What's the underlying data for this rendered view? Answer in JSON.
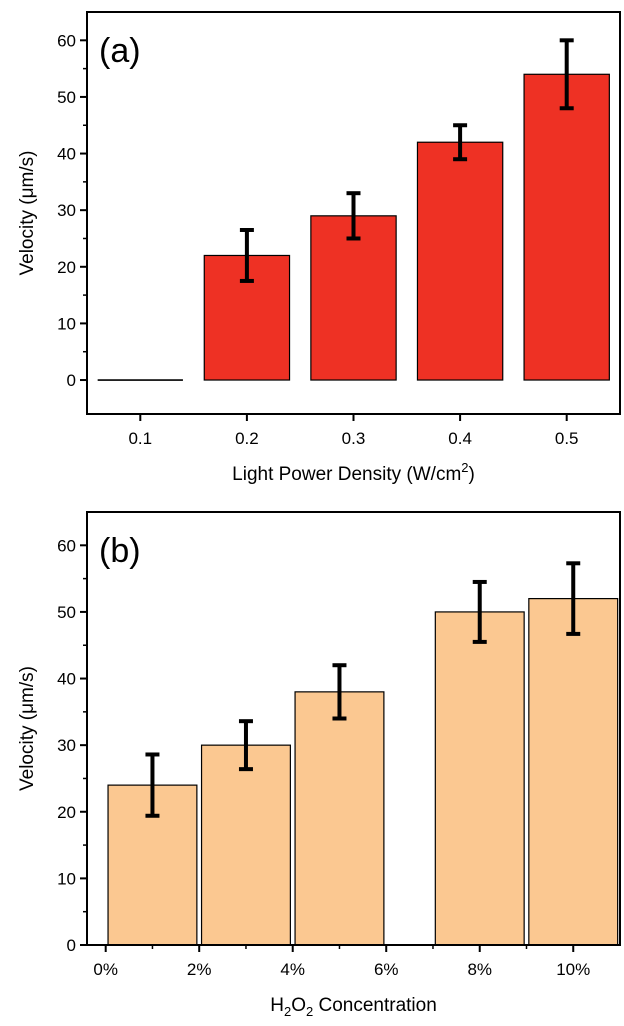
{
  "chart_data": [
    {
      "type": "bar",
      "panel_label": "(a)",
      "xlabel": "Light Power Density (W/cm",
      "xlabel_sup": "2",
      "xlabel_end": ")",
      "ylabel": "Velocity (μm/s)",
      "categories": [
        "0.1",
        "0.2",
        "0.3",
        "0.4",
        "0.5"
      ],
      "values": [
        0,
        22,
        29,
        42,
        54
      ],
      "errors": [
        0,
        4.5,
        4,
        3,
        6
      ],
      "ylim": [
        -6,
        65
      ],
      "yticks": [
        0,
        10,
        20,
        30,
        40,
        50,
        60
      ],
      "bar_color": "#ee3124",
      "error_bar_color": "#000000",
      "grid": false
    },
    {
      "type": "bar",
      "panel_label": "(b)",
      "xlabel_pre": "H",
      "xlabel_sub1": "2",
      "xlabel_mid": "O",
      "xlabel_sub2": "2",
      "xlabel_post": " Concentration",
      "ylabel": "Velocity (μm/s)",
      "x_tick_labels": [
        "0%",
        "2%",
        "4%",
        "6%",
        "8%",
        "10%"
      ],
      "x_tick_values": [
        0,
        2,
        4,
        6,
        8,
        10
      ],
      "xlim": [
        -0.4,
        11
      ],
      "bars": [
        {
          "x": 1,
          "value": 24,
          "error": 4.6
        },
        {
          "x": 3,
          "value": 30,
          "error": 3.6
        },
        {
          "x": 5,
          "value": 38,
          "error": 4
        },
        {
          "x": 8,
          "value": 50,
          "error": 4.5
        },
        {
          "x": 10,
          "value": 52,
          "error": 5.3
        }
      ],
      "bar_width": 1.9,
      "ylim": [
        0,
        65
      ],
      "yticks": [
        0,
        10,
        20,
        30,
        40,
        50,
        60
      ],
      "bar_color": "#fbc891",
      "error_bar_color": "#000000",
      "grid": false
    }
  ]
}
